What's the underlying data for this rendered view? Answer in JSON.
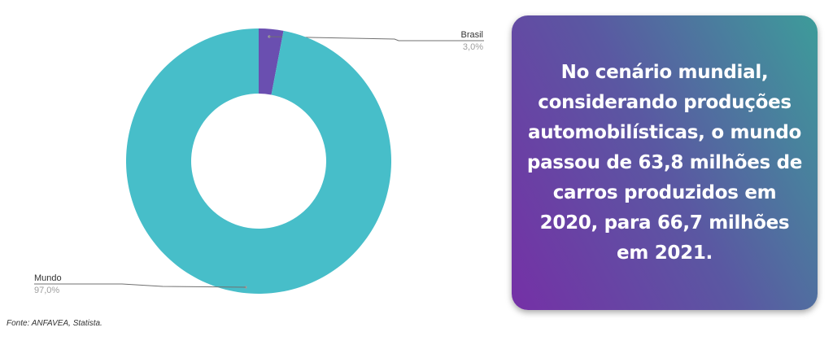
{
  "chart_data": {
    "type": "pie",
    "donut": true,
    "categories": [
      "Brasil",
      "Mundo"
    ],
    "values": [
      3.0,
      97.0
    ],
    "value_labels": [
      "3,0%",
      "97,0%"
    ],
    "colors": [
      "#6a4fb0",
      "#47bec9"
    ],
    "title": "",
    "legend": "none"
  },
  "source_note": "Fonte: ANFAVEA, Statista.",
  "info_card": {
    "text": "No cenário mundial, considerando produções automobilísticas, o mundo passou de 63,8 milhões de carros produzidos em 2020, para 66,7 milhões em 2021."
  }
}
